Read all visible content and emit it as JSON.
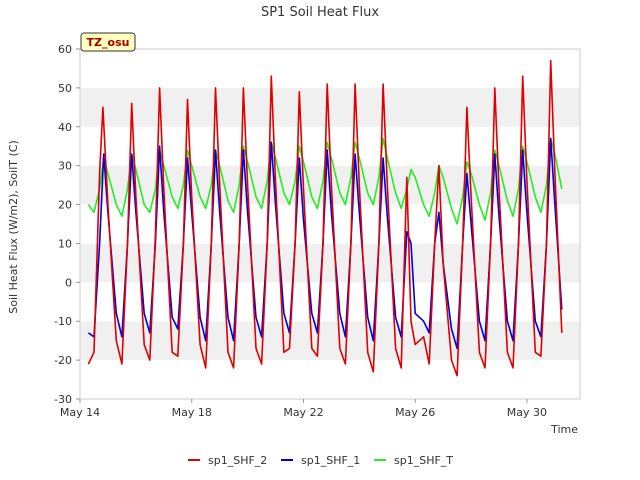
{
  "chart_data": {
    "type": "line",
    "title": "SP1 Soil Heat Flux",
    "xlabel": "Time",
    "ylabel": "Soil Heat Flux (W/m2), SoilT (C)",
    "xlim": [
      14.0,
      31.9
    ],
    "ylim": [
      -30,
      60
    ],
    "yticks": [
      -30,
      -20,
      -10,
      0,
      10,
      20,
      30,
      40,
      50,
      60
    ],
    "xticks": [
      {
        "value": 14,
        "label": "May 14"
      },
      {
        "value": 18,
        "label": "May 18"
      },
      {
        "value": 22,
        "label": "May 22"
      },
      {
        "value": 26,
        "label": "May 26"
      },
      {
        "value": 30,
        "label": "May 30"
      }
    ],
    "annotation": "TZ_osu",
    "grid": "horizontal bands",
    "legend_position": "bottom",
    "series": [
      {
        "name": "sp1_SHF_2",
        "color": "#e00000",
        "days": [
          14.3,
          14.5,
          14.7,
          14.82,
          15.0,
          15.3,
          15.5,
          15.7,
          15.85,
          16.0,
          16.3,
          16.5,
          16.7,
          16.85,
          17.0,
          17.3,
          17.5,
          17.7,
          17.85,
          18.0,
          18.3,
          18.5,
          18.7,
          18.85,
          19.0,
          19.3,
          19.5,
          19.7,
          19.85,
          20.0,
          20.3,
          20.5,
          20.7,
          20.85,
          21.0,
          21.3,
          21.5,
          21.7,
          21.85,
          22.0,
          22.3,
          22.5,
          22.7,
          22.85,
          23.0,
          23.3,
          23.5,
          23.7,
          23.85,
          24.0,
          24.3,
          24.5,
          24.7,
          24.85,
          25.0,
          25.3,
          25.5,
          25.7,
          25.85,
          26.0,
          26.3,
          26.5,
          26.7,
          26.85,
          27.0,
          27.3,
          27.5,
          27.7,
          27.85,
          28.0,
          28.3,
          28.5,
          28.7,
          28.85,
          29.0,
          29.3,
          29.5,
          29.7,
          29.85,
          30.0,
          30.3,
          30.5,
          30.7,
          30.85,
          31.0,
          31.25
        ],
        "values": [
          -21,
          -18,
          28,
          45,
          20,
          -15,
          -21,
          10,
          46,
          22,
          -16,
          -20,
          12,
          50,
          24,
          -18,
          -19,
          10,
          47,
          22,
          -16,
          -22,
          10,
          50,
          25,
          -18,
          -22,
          10,
          50,
          25,
          -17,
          -21,
          10,
          53,
          26,
          -18,
          -17,
          10,
          49,
          24,
          -17,
          -19,
          10,
          51,
          25,
          -17,
          -21,
          10,
          51,
          25,
          -18,
          -23,
          10,
          51,
          25,
          -17,
          -22,
          27,
          -10,
          -16,
          -14,
          -21,
          10,
          30,
          5,
          -20,
          -24,
          10,
          45,
          22,
          -18,
          -22,
          10,
          50,
          24,
          -18,
          -22,
          10,
          53,
          26,
          -18,
          -19,
          10,
          57,
          28,
          -13
        ],
        "style": "solid"
      },
      {
        "name": "sp1_SHF_1",
        "color": "#0000dd",
        "days": [
          14.3,
          14.5,
          14.7,
          14.85,
          15.0,
          15.3,
          15.5,
          15.7,
          15.85,
          16.0,
          16.3,
          16.5,
          16.7,
          16.85,
          17.0,
          17.3,
          17.5,
          17.7,
          17.85,
          18.0,
          18.3,
          18.5,
          18.7,
          18.85,
          19.0,
          19.3,
          19.5,
          19.7,
          19.85,
          20.0,
          20.3,
          20.5,
          20.7,
          20.85,
          21.0,
          21.3,
          21.5,
          21.7,
          21.85,
          22.0,
          22.3,
          22.5,
          22.7,
          22.85,
          23.0,
          23.3,
          23.5,
          23.7,
          23.85,
          24.0,
          24.3,
          24.5,
          24.7,
          24.85,
          25.0,
          25.3,
          25.5,
          25.7,
          25.85,
          26.0,
          26.3,
          26.5,
          26.7,
          26.85,
          27.0,
          27.3,
          27.5,
          27.7,
          27.85,
          28.0,
          28.3,
          28.5,
          28.7,
          28.85,
          29.0,
          29.3,
          29.5,
          29.7,
          29.85,
          30.0,
          30.3,
          30.5,
          30.7,
          30.85,
          31.0,
          31.25
        ],
        "values": [
          -13,
          -14,
          10,
          33,
          18,
          -8,
          -14,
          10,
          33,
          18,
          -8,
          -13,
          10,
          35,
          18,
          -9,
          -12,
          10,
          32,
          18,
          -9,
          -15,
          10,
          34,
          18,
          -9,
          -15,
          10,
          34,
          18,
          -9,
          -14,
          10,
          36,
          20,
          -8,
          -13,
          10,
          32,
          16,
          -8,
          -13,
          10,
          34,
          18,
          -8,
          -14,
          10,
          33,
          18,
          -9,
          -15,
          10,
          32,
          17,
          -9,
          -14,
          13,
          10,
          -8,
          -10,
          -13,
          10,
          18,
          5,
          -12,
          -17,
          10,
          28,
          15,
          -10,
          -15,
          10,
          33,
          17,
          -10,
          -15,
          10,
          34,
          18,
          -10,
          -14,
          10,
          37,
          20,
          -7
        ],
        "style": "solid"
      },
      {
        "name": "sp1_SHF_T",
        "color": "#22ee22",
        "days": [
          14.3,
          14.5,
          14.7,
          14.85,
          15.0,
          15.3,
          15.5,
          15.7,
          15.85,
          16.0,
          16.3,
          16.5,
          16.7,
          16.85,
          17.0,
          17.3,
          17.5,
          17.7,
          17.85,
          18.0,
          18.3,
          18.5,
          18.7,
          18.85,
          19.0,
          19.3,
          19.5,
          19.7,
          19.85,
          20.0,
          20.3,
          20.5,
          20.7,
          20.85,
          21.0,
          21.3,
          21.5,
          21.7,
          21.85,
          22.0,
          22.3,
          22.5,
          22.7,
          22.85,
          23.0,
          23.3,
          23.5,
          23.7,
          23.85,
          24.0,
          24.3,
          24.5,
          24.7,
          24.85,
          25.0,
          25.3,
          25.5,
          25.7,
          25.85,
          26.0,
          26.3,
          26.5,
          26.7,
          26.85,
          27.0,
          27.3,
          27.5,
          27.7,
          27.85,
          28.0,
          28.3,
          28.5,
          28.7,
          28.85,
          29.0,
          29.3,
          29.5,
          29.7,
          29.85,
          30.0,
          30.3,
          30.5,
          30.7,
          30.85,
          31.0,
          31.25
        ],
        "values": [
          20,
          18,
          24,
          32,
          28,
          20,
          17,
          24,
          33,
          29,
          20,
          18,
          24,
          34,
          30,
          22,
          19,
          25,
          34,
          30,
          22,
          19,
          25,
          34,
          30,
          21,
          18,
          25,
          35,
          31,
          22,
          19,
          26,
          36,
          32,
          23,
          20,
          26,
          35,
          31,
          22,
          19,
          26,
          36,
          32,
          23,
          20,
          27,
          36,
          32,
          23,
          20,
          27,
          37,
          32,
          23,
          19,
          24,
          29,
          27,
          20,
          17,
          23,
          30,
          27,
          19,
          15,
          22,
          31,
          28,
          20,
          16,
          23,
          34,
          30,
          21,
          17,
          24,
          35,
          31,
          22,
          18,
          25,
          37,
          33,
          24
        ],
        "style": "solid"
      }
    ]
  }
}
